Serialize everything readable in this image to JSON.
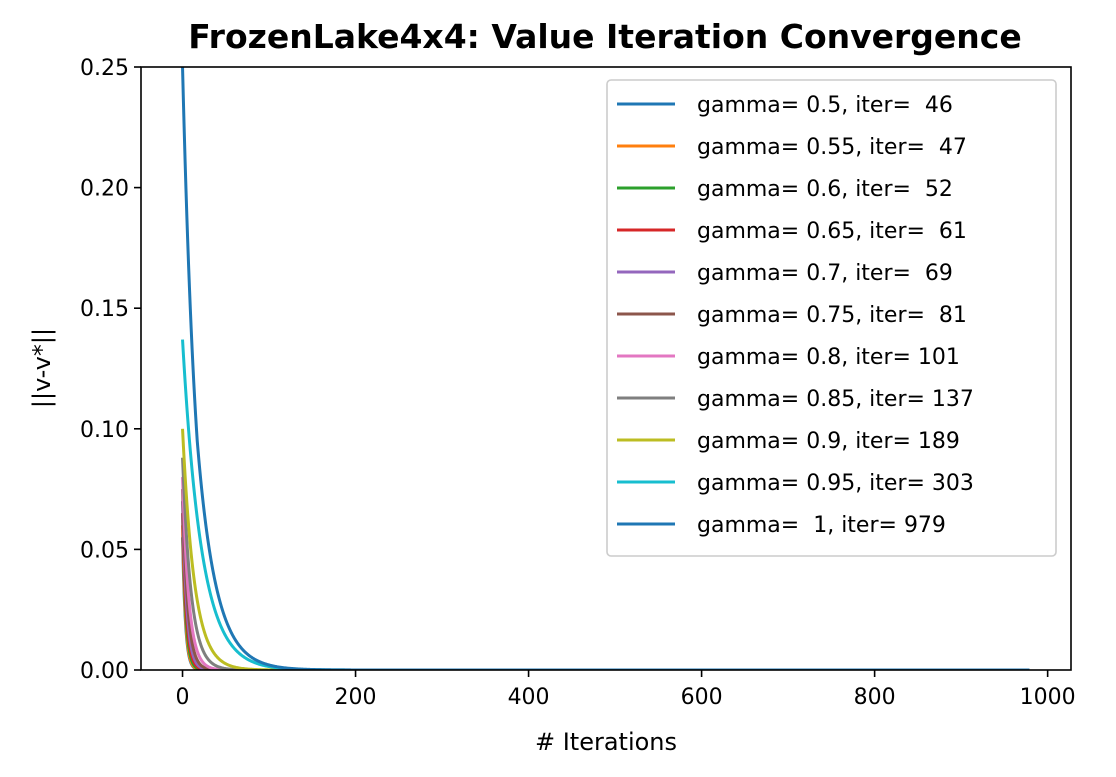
{
  "chart_data": {
    "type": "line",
    "title": "FrozenLake4x4: Value Iteration Convergence",
    "xlabel": "# Iterations",
    "ylabel": "||v-v*||",
    "xlim": [
      -48,
      1027
    ],
    "ylim": [
      0,
      0.25
    ],
    "xticks": [
      "0",
      "200",
      "400",
      "600",
      "800",
      "1000"
    ],
    "yticks": [
      "0.00",
      "0.05",
      "0.10",
      "0.15",
      "0.20",
      "0.25"
    ],
    "grid": false,
    "legend_position": "top-right",
    "series": [
      {
        "name": "gamma= 0.5, iter=  46",
        "gamma": 0.5,
        "iterations": 46,
        "start": 0.055,
        "color": "#1f77b4"
      },
      {
        "name": "gamma= 0.55, iter=  47",
        "gamma": 0.55,
        "iterations": 47,
        "start": 0.06,
        "color": "#ff7f0e"
      },
      {
        "name": "gamma= 0.6, iter=  52",
        "gamma": 0.6,
        "iterations": 52,
        "start": 0.065,
        "color": "#2ca02c"
      },
      {
        "name": "gamma= 0.65, iter=  61",
        "gamma": 0.65,
        "iterations": 61,
        "start": 0.065,
        "color": "#d62728"
      },
      {
        "name": "gamma= 0.7, iter=  69",
        "gamma": 0.7,
        "iterations": 69,
        "start": 0.07,
        "color": "#9467bd"
      },
      {
        "name": "gamma= 0.75, iter=  81",
        "gamma": 0.75,
        "iterations": 81,
        "start": 0.075,
        "color": "#8c564b"
      },
      {
        "name": "gamma= 0.8, iter= 101",
        "gamma": 0.8,
        "iterations": 101,
        "start": 0.08,
        "color": "#e377c2"
      },
      {
        "name": "gamma= 0.85, iter= 137",
        "gamma": 0.85,
        "iterations": 137,
        "start": 0.088,
        "color": "#7f7f7f"
      },
      {
        "name": "gamma= 0.9, iter= 189",
        "gamma": 0.9,
        "iterations": 189,
        "start": 0.1,
        "color": "#bcbd22"
      },
      {
        "name": "gamma= 0.95, iter= 303",
        "gamma": 0.95,
        "iterations": 303,
        "start": 0.137,
        "color": "#17becf"
      },
      {
        "name": "gamma=  1, iter= 979",
        "gamma": 1,
        "iterations": 979,
        "start": 0.25,
        "knee": [
          17,
          0.095
        ],
        "color": "#1f77b4"
      }
    ]
  }
}
